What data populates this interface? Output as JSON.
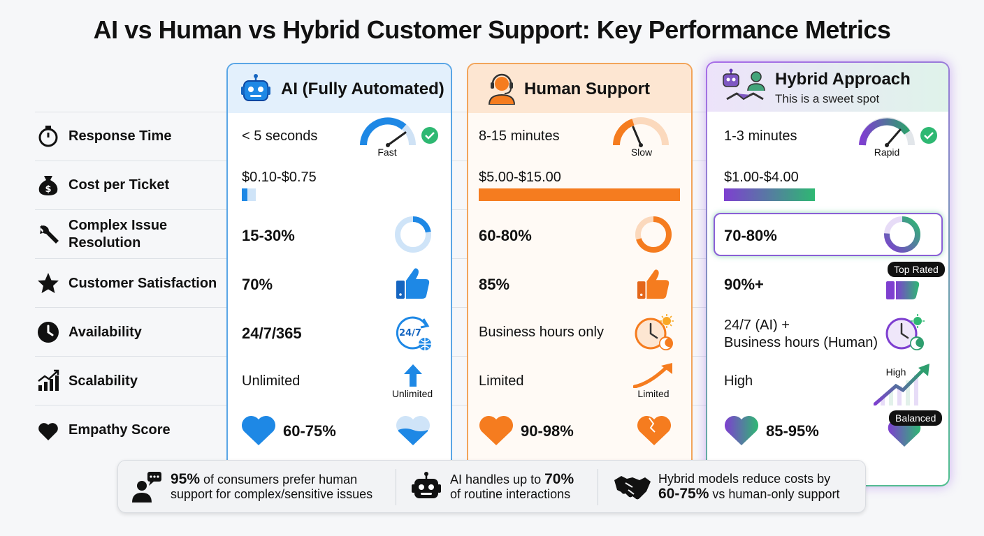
{
  "title": "AI vs Human vs Hybrid Customer Support: Key Performance Metrics",
  "columns": {
    "ai": {
      "title": "AI (Fully Automated)",
      "accent": "#1e88e5"
    },
    "human": {
      "title": "Human Support",
      "accent": "#f57c1f"
    },
    "hybrid": {
      "title": "Hybrid Approach",
      "subtitle": "This is a sweet spot",
      "accent": "#7e3fd0"
    }
  },
  "metrics": [
    {
      "label": "Response Time",
      "icon": "stopwatch-icon"
    },
    {
      "label": "Cost per Ticket",
      "icon": "money-bag-icon"
    },
    {
      "label_line1": "Complex Issue",
      "label_line2": "Resolution",
      "icon": "wrench-icon"
    },
    {
      "label": "Customer Satisfaction",
      "icon": "star-icon"
    },
    {
      "label": "Availability",
      "icon": "clock-icon"
    },
    {
      "label": "Scalability",
      "icon": "growth-chart-icon"
    },
    {
      "label": "Empathy Score",
      "icon": "heart-icon"
    }
  ],
  "ai": {
    "response_time": "< 5 seconds",
    "response_gauge": "Fast",
    "cost": "$0.10-$0.75",
    "cost_bar_fraction": 0.05,
    "complex": "15-30%",
    "satisfaction": "70%",
    "availability": "24/7/365",
    "availability_icon_text": "24/7",
    "scalability": "Unlimited",
    "scalability_caption": "Unlimited",
    "empathy": "60-75%"
  },
  "human": {
    "response_time": "8-15 minutes",
    "response_gauge": "Slow",
    "cost": "$5.00-$15.00",
    "cost_bar_fraction": 1.0,
    "complex": "60-80%",
    "satisfaction": "85%",
    "availability": "Business hours only",
    "scalability": "Limited",
    "scalability_caption": "Limited",
    "empathy": "90-98%"
  },
  "hybrid": {
    "response_time": "1-3 minutes",
    "response_gauge": "Rapid",
    "cost": "$1.00-$4.00",
    "cost_bar_fraction": 0.45,
    "complex": "70-80%",
    "satisfaction": "90%+",
    "satisfaction_badge": "Top Rated",
    "availability_line1": "24/7 (AI) +",
    "availability_line2": "Business hours (Human)",
    "scalability": "High",
    "scalability_caption": "High",
    "empathy": "85-95%",
    "empathy_badge": "Balanced"
  },
  "footer": {
    "item1_bold": "95%",
    "item1_rest": "of consumers prefer human",
    "item1_line2": "support for complex/sensitive issues",
    "item2_pre": "AI handles up to",
    "item2_bold": "70%",
    "item2_line2": "of routine interactions",
    "item3_line1": "Hybrid models reduce costs by",
    "item3_bold": "60-75%",
    "item3_rest": "vs human-only support"
  }
}
